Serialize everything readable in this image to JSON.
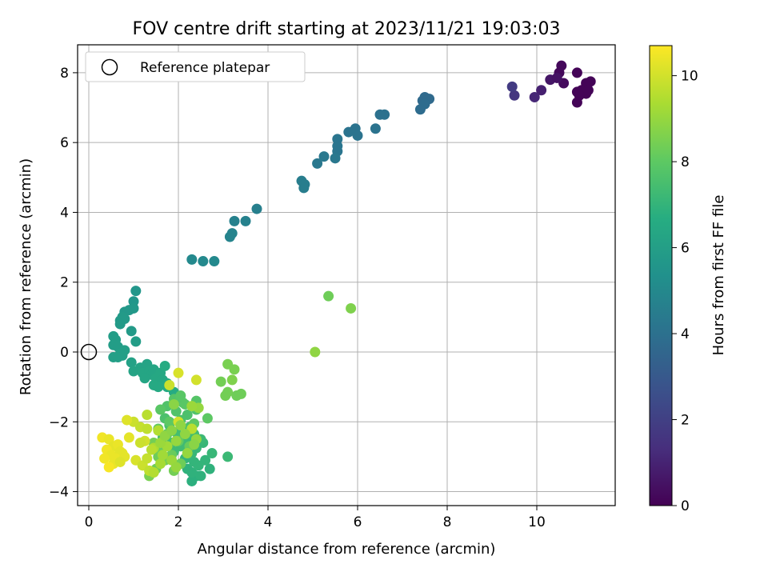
{
  "chart_data": {
    "type": "scatter",
    "title": "FOV centre drift starting at 2023/11/21 19:03:03",
    "xlabel": "Angular distance from reference (arcmin)",
    "ylabel": "Rotation from reference (arcmin)",
    "xlim": [
      -0.25,
      11.75
    ],
    "ylim": [
      -4.4,
      8.8
    ],
    "xticks": [
      0,
      2,
      4,
      6,
      8,
      10
    ],
    "yticks": [
      -4,
      -2,
      0,
      2,
      4,
      6,
      8
    ],
    "grid": true,
    "legend": {
      "position": "top-left",
      "entries": [
        "Reference platepar"
      ]
    },
    "reference_point": {
      "x": 0,
      "y": 0
    },
    "colorbar": {
      "label": "Hours from first FF file",
      "range": [
        0,
        10.7
      ],
      "ticks": [
        0,
        2,
        4,
        6,
        8,
        10
      ],
      "colormap": "viridis"
    },
    "points": [
      {
        "x": 10.55,
        "y": 8.2,
        "h": 0.2
      },
      {
        "x": 10.5,
        "y": 8.0,
        "h": 0.2
      },
      {
        "x": 10.9,
        "y": 8.0,
        "h": 0.1
      },
      {
        "x": 10.6,
        "y": 7.7,
        "h": 0.3
      },
      {
        "x": 10.3,
        "y": 7.8,
        "h": 0.6
      },
      {
        "x": 10.45,
        "y": 7.85,
        "h": 0.5
      },
      {
        "x": 11.1,
        "y": 7.7,
        "h": 0.1
      },
      {
        "x": 11.2,
        "y": 7.75,
        "h": 0.1
      },
      {
        "x": 11.0,
        "y": 7.5,
        "h": 0.1
      },
      {
        "x": 10.9,
        "y": 7.45,
        "h": 0.1
      },
      {
        "x": 11.1,
        "y": 7.4,
        "h": 0.1
      },
      {
        "x": 10.95,
        "y": 7.35,
        "h": 0.1
      },
      {
        "x": 11.15,
        "y": 7.5,
        "h": 0.1
      },
      {
        "x": 10.9,
        "y": 7.15,
        "h": 0.1
      },
      {
        "x": 10.1,
        "y": 7.5,
        "h": 0.9
      },
      {
        "x": 9.95,
        "y": 7.3,
        "h": 1.1
      },
      {
        "x": 9.5,
        "y": 7.35,
        "h": 1.6
      },
      {
        "x": 9.45,
        "y": 7.6,
        "h": 1.8
      },
      {
        "x": 7.5,
        "y": 7.3,
        "h": 3.7
      },
      {
        "x": 7.6,
        "y": 7.25,
        "h": 3.7
      },
      {
        "x": 7.45,
        "y": 7.2,
        "h": 3.7
      },
      {
        "x": 7.5,
        "y": 7.1,
        "h": 3.8
      },
      {
        "x": 7.4,
        "y": 6.95,
        "h": 3.8
      },
      {
        "x": 6.6,
        "y": 6.8,
        "h": 4.0
      },
      {
        "x": 6.5,
        "y": 6.8,
        "h": 4.0
      },
      {
        "x": 6.4,
        "y": 6.4,
        "h": 4.1
      },
      {
        "x": 5.95,
        "y": 6.4,
        "h": 4.1
      },
      {
        "x": 5.8,
        "y": 6.3,
        "h": 4.1
      },
      {
        "x": 6.0,
        "y": 6.2,
        "h": 4.1
      },
      {
        "x": 5.55,
        "y": 6.1,
        "h": 4.2
      },
      {
        "x": 5.55,
        "y": 5.9,
        "h": 4.2
      },
      {
        "x": 5.55,
        "y": 5.75,
        "h": 4.2
      },
      {
        "x": 5.25,
        "y": 5.6,
        "h": 4.3
      },
      {
        "x": 5.5,
        "y": 5.55,
        "h": 4.3
      },
      {
        "x": 5.1,
        "y": 5.4,
        "h": 4.3
      },
      {
        "x": 4.75,
        "y": 4.9,
        "h": 4.5
      },
      {
        "x": 4.82,
        "y": 4.8,
        "h": 4.5
      },
      {
        "x": 4.8,
        "y": 4.7,
        "h": 4.5
      },
      {
        "x": 3.75,
        "y": 4.1,
        "h": 4.6
      },
      {
        "x": 3.5,
        "y": 3.75,
        "h": 4.7
      },
      {
        "x": 3.25,
        "y": 3.75,
        "h": 4.7
      },
      {
        "x": 3.2,
        "y": 3.4,
        "h": 4.8
      },
      {
        "x": 3.15,
        "y": 3.3,
        "h": 4.8
      },
      {
        "x": 2.3,
        "y": 2.65,
        "h": 5.0
      },
      {
        "x": 2.55,
        "y": 2.6,
        "h": 5.0
      },
      {
        "x": 2.8,
        "y": 2.6,
        "h": 5.0
      },
      {
        "x": 1.05,
        "y": 1.75,
        "h": 5.6
      },
      {
        "x": 1.0,
        "y": 1.45,
        "h": 5.6
      },
      {
        "x": 1.0,
        "y": 1.25,
        "h": 5.7
      },
      {
        "x": 0.9,
        "y": 1.2,
        "h": 5.7
      },
      {
        "x": 0.8,
        "y": 1.15,
        "h": 5.7
      },
      {
        "x": 0.75,
        "y": 1.0,
        "h": 5.8
      },
      {
        "x": 0.7,
        "y": 0.9,
        "h": 5.8
      },
      {
        "x": 0.8,
        "y": 0.95,
        "h": 5.8
      },
      {
        "x": 0.7,
        "y": 0.8,
        "h": 5.8
      },
      {
        "x": 0.95,
        "y": 0.6,
        "h": 5.8
      },
      {
        "x": 0.55,
        "y": 0.45,
        "h": 5.9
      },
      {
        "x": 0.6,
        "y": 0.35,
        "h": 5.9
      },
      {
        "x": 1.05,
        "y": 0.3,
        "h": 5.9
      },
      {
        "x": 0.55,
        "y": 0.2,
        "h": 5.9
      },
      {
        "x": 0.65,
        "y": 0.15,
        "h": 5.9
      },
      {
        "x": 0.8,
        "y": 0.05,
        "h": 6.0
      },
      {
        "x": 0.7,
        "y": -0.05,
        "h": 6.0
      },
      {
        "x": 0.75,
        "y": -0.1,
        "h": 6.0
      },
      {
        "x": 0.55,
        "y": -0.15,
        "h": 6.0
      },
      {
        "x": 0.65,
        "y": -0.15,
        "h": 6.0
      },
      {
        "x": 0.95,
        "y": -0.3,
        "h": 6.1
      },
      {
        "x": 1.15,
        "y": -0.45,
        "h": 6.2
      },
      {
        "x": 1.3,
        "y": -0.35,
        "h": 6.2
      },
      {
        "x": 1.0,
        "y": -0.55,
        "h": 6.2
      },
      {
        "x": 1.2,
        "y": -0.6,
        "h": 6.3
      },
      {
        "x": 1.35,
        "y": -0.55,
        "h": 6.3
      },
      {
        "x": 1.4,
        "y": -0.65,
        "h": 6.3
      },
      {
        "x": 1.45,
        "y": -0.5,
        "h": 6.3
      },
      {
        "x": 1.25,
        "y": -0.75,
        "h": 6.3
      },
      {
        "x": 1.5,
        "y": -0.75,
        "h": 6.4
      },
      {
        "x": 1.6,
        "y": -0.6,
        "h": 6.4
      },
      {
        "x": 1.65,
        "y": -0.8,
        "h": 6.4
      },
      {
        "x": 1.45,
        "y": -0.95,
        "h": 6.5
      },
      {
        "x": 1.55,
        "y": -1.0,
        "h": 6.5
      },
      {
        "x": 1.75,
        "y": -0.9,
        "h": 6.5
      },
      {
        "x": 1.75,
        "y": -1.0,
        "h": 6.5
      },
      {
        "x": 1.9,
        "y": -1.15,
        "h": 6.6
      },
      {
        "x": 1.7,
        "y": -0.4,
        "h": 6.6
      },
      {
        "x": 2.4,
        "y": -3.55,
        "h": 6.8
      },
      {
        "x": 2.3,
        "y": -3.7,
        "h": 6.8
      },
      {
        "x": 2.3,
        "y": -3.45,
        "h": 6.9
      },
      {
        "x": 2.5,
        "y": -3.55,
        "h": 6.9
      },
      {
        "x": 2.2,
        "y": -3.35,
        "h": 6.9
      },
      {
        "x": 2.7,
        "y": -3.35,
        "h": 6.9
      },
      {
        "x": 2.6,
        "y": -3.1,
        "h": 7.0
      },
      {
        "x": 2.45,
        "y": -3.25,
        "h": 7.0
      },
      {
        "x": 2.35,
        "y": -3.15,
        "h": 7.0
      },
      {
        "x": 2.15,
        "y": -3.05,
        "h": 7.0
      },
      {
        "x": 2.75,
        "y": -2.9,
        "h": 7.1
      },
      {
        "x": 2.55,
        "y": -2.6,
        "h": 7.1
      },
      {
        "x": 2.4,
        "y": -2.75,
        "h": 7.1
      },
      {
        "x": 2.3,
        "y": -2.9,
        "h": 7.1
      },
      {
        "x": 3.1,
        "y": -3.0,
        "h": 7.2
      },
      {
        "x": 2.5,
        "y": -2.5,
        "h": 7.2
      },
      {
        "x": 2.2,
        "y": -2.55,
        "h": 7.2
      },
      {
        "x": 2.05,
        "y": -2.7,
        "h": 7.3
      },
      {
        "x": 1.9,
        "y": -2.85,
        "h": 7.3
      },
      {
        "x": 2.1,
        "y": -2.45,
        "h": 7.3
      },
      {
        "x": 1.85,
        "y": -2.6,
        "h": 7.4
      },
      {
        "x": 2.35,
        "y": -2.35,
        "h": 7.4
      },
      {
        "x": 1.95,
        "y": -2.3,
        "h": 7.4
      },
      {
        "x": 1.65,
        "y": -2.45,
        "h": 7.5
      },
      {
        "x": 2.25,
        "y": -2.15,
        "h": 7.5
      },
      {
        "x": 1.8,
        "y": -2.1,
        "h": 7.5
      },
      {
        "x": 2.05,
        "y": -1.95,
        "h": 7.6
      },
      {
        "x": 1.7,
        "y": -1.9,
        "h": 7.6
      },
      {
        "x": 2.2,
        "y": -1.8,
        "h": 7.6
      },
      {
        "x": 1.95,
        "y": -1.7,
        "h": 7.7
      },
      {
        "x": 2.4,
        "y": -1.65,
        "h": 7.7
      },
      {
        "x": 1.75,
        "y": -1.55,
        "h": 7.7
      },
      {
        "x": 2.1,
        "y": -1.45,
        "h": 7.8
      },
      {
        "x": 2.4,
        "y": -1.4,
        "h": 7.8
      },
      {
        "x": 1.9,
        "y": -1.35,
        "h": 7.8
      },
      {
        "x": 2.05,
        "y": -1.25,
        "h": 7.9
      },
      {
        "x": 2.15,
        "y": -1.5,
        "h": 7.9
      },
      {
        "x": 1.6,
        "y": -1.65,
        "h": 7.9
      },
      {
        "x": 1.8,
        "y": -2.0,
        "h": 8.0
      },
      {
        "x": 2.35,
        "y": -2.05,
        "h": 8.0
      },
      {
        "x": 2.65,
        "y": -1.9,
        "h": 8.0
      },
      {
        "x": 1.55,
        "y": -2.2,
        "h": 8.1
      },
      {
        "x": 1.75,
        "y": -2.35,
        "h": 8.1
      },
      {
        "x": 2.0,
        "y": -2.55,
        "h": 8.1
      },
      {
        "x": 2.25,
        "y": -2.7,
        "h": 8.2
      },
      {
        "x": 1.6,
        "y": -2.75,
        "h": 8.2
      },
      {
        "x": 1.85,
        "y": -2.95,
        "h": 8.2
      },
      {
        "x": 2.05,
        "y": -3.2,
        "h": 8.3
      },
      {
        "x": 1.55,
        "y": -3.0,
        "h": 8.3
      },
      {
        "x": 1.5,
        "y": -3.35,
        "h": 8.3
      },
      {
        "x": 1.9,
        "y": -3.4,
        "h": 8.4
      },
      {
        "x": 1.7,
        "y": -3.1,
        "h": 8.4
      },
      {
        "x": 1.45,
        "y": -2.6,
        "h": 8.4
      },
      {
        "x": 1.35,
        "y": -3.55,
        "h": 8.5
      },
      {
        "x": 3.3,
        "y": -1.25,
        "h": 8.3
      },
      {
        "x": 3.4,
        "y": -1.2,
        "h": 8.3
      },
      {
        "x": 3.05,
        "y": -1.25,
        "h": 8.4
      },
      {
        "x": 3.1,
        "y": -1.15,
        "h": 8.4
      },
      {
        "x": 2.95,
        "y": -0.85,
        "h": 8.4
      },
      {
        "x": 3.1,
        "y": -0.35,
        "h": 8.5
      },
      {
        "x": 3.25,
        "y": -0.5,
        "h": 8.5
      },
      {
        "x": 3.2,
        "y": -0.8,
        "h": 8.6
      },
      {
        "x": 5.35,
        "y": 1.6,
        "h": 8.3
      },
      {
        "x": 5.85,
        "y": 1.25,
        "h": 8.6
      },
      {
        "x": 5.05,
        "y": 0.0,
        "h": 8.9
      },
      {
        "x": 2.0,
        "y": -0.6,
        "h": 10.1
      },
      {
        "x": 2.4,
        "y": -0.8,
        "h": 10.0
      },
      {
        "x": 1.8,
        "y": -0.95,
        "h": 9.9
      },
      {
        "x": 1.3,
        "y": -1.8,
        "h": 9.6
      },
      {
        "x": 1.0,
        "y": -2.0,
        "h": 9.9
      },
      {
        "x": 0.85,
        "y": -1.95,
        "h": 10.2
      },
      {
        "x": 1.15,
        "y": -2.15,
        "h": 9.8
      },
      {
        "x": 1.3,
        "y": -2.2,
        "h": 9.7
      },
      {
        "x": 1.55,
        "y": -2.25,
        "h": 9.5
      },
      {
        "x": 2.0,
        "y": -2.0,
        "h": 10.0
      },
      {
        "x": 2.3,
        "y": -2.2,
        "h": 9.6
      },
      {
        "x": 0.9,
        "y": -2.45,
        "h": 10.3
      },
      {
        "x": 1.25,
        "y": -2.55,
        "h": 10.0
      },
      {
        "x": 1.15,
        "y": -2.6,
        "h": 9.9
      },
      {
        "x": 1.45,
        "y": -2.75,
        "h": 9.4
      },
      {
        "x": 0.3,
        "y": -2.45,
        "h": 10.5
      },
      {
        "x": 0.45,
        "y": -2.5,
        "h": 10.4
      },
      {
        "x": 0.55,
        "y": -2.7,
        "h": 10.3
      },
      {
        "x": 0.65,
        "y": -2.65,
        "h": 10.4
      },
      {
        "x": 0.4,
        "y": -2.8,
        "h": 10.5
      },
      {
        "x": 0.5,
        "y": -2.95,
        "h": 10.4
      },
      {
        "x": 0.7,
        "y": -2.85,
        "h": 10.3
      },
      {
        "x": 0.75,
        "y": -2.9,
        "h": 10.3
      },
      {
        "x": 0.35,
        "y": -3.05,
        "h": 10.5
      },
      {
        "x": 0.6,
        "y": -3.05,
        "h": 10.4
      },
      {
        "x": 0.8,
        "y": -3.0,
        "h": 10.3
      },
      {
        "x": 0.55,
        "y": -3.2,
        "h": 10.4
      },
      {
        "x": 0.45,
        "y": -3.3,
        "h": 10.6
      },
      {
        "x": 0.7,
        "y": -3.15,
        "h": 10.2
      },
      {
        "x": 1.05,
        "y": -3.1,
        "h": 10.1
      },
      {
        "x": 1.2,
        "y": -3.25,
        "h": 9.9
      },
      {
        "x": 1.35,
        "y": -3.4,
        "h": 9.7
      },
      {
        "x": 1.3,
        "y": -3.05,
        "h": 9.8
      },
      {
        "x": 1.45,
        "y": -3.45,
        "h": 9.5
      },
      {
        "x": 1.6,
        "y": -3.2,
        "h": 9.3
      },
      {
        "x": 1.65,
        "y": -2.95,
        "h": 9.2
      },
      {
        "x": 1.85,
        "y": -3.1,
        "h": 9.1
      },
      {
        "x": 1.95,
        "y": -3.3,
        "h": 9.0
      },
      {
        "x": 1.4,
        "y": -2.8,
        "h": 9.6
      },
      {
        "x": 1.75,
        "y": -2.7,
        "h": 9.2
      },
      {
        "x": 2.2,
        "y": -2.9,
        "h": 9.0
      },
      {
        "x": 1.6,
        "y": -2.6,
        "h": 9.1
      },
      {
        "x": 1.95,
        "y": -2.55,
        "h": 9.0
      },
      {
        "x": 2.4,
        "y": -2.5,
        "h": 9.0
      },
      {
        "x": 1.7,
        "y": -2.4,
        "h": 8.9
      },
      {
        "x": 1.85,
        "y": -2.25,
        "h": 8.8
      },
      {
        "x": 2.15,
        "y": -2.35,
        "h": 8.9
      },
      {
        "x": 2.35,
        "y": -2.65,
        "h": 8.8
      },
      {
        "x": 2.45,
        "y": -1.6,
        "h": 9.0
      },
      {
        "x": 2.3,
        "y": -1.55,
        "h": 9.1
      },
      {
        "x": 1.9,
        "y": -1.5,
        "h": 8.8
      },
      {
        "x": 2.05,
        "y": -2.1,
        "h": 8.9
      }
    ]
  }
}
